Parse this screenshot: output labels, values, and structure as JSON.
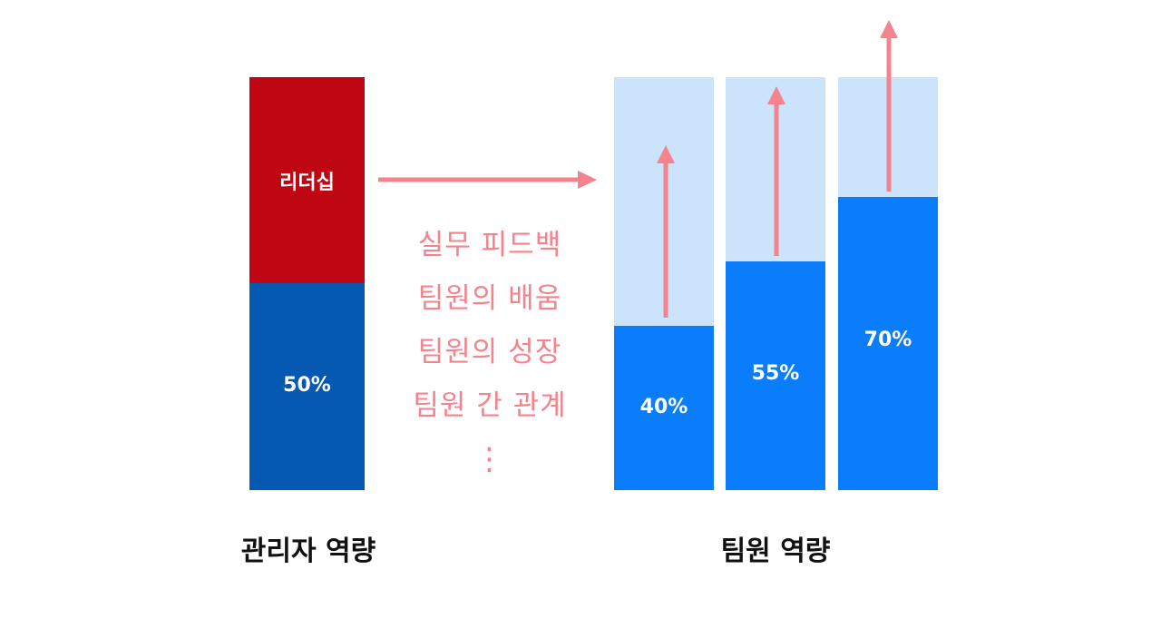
{
  "manager": {
    "caption": "관리자 역량",
    "top_label": "리더십",
    "bottom_label": "50%",
    "colors": {
      "top": "#bf0714",
      "bottom": "#0559b0"
    }
  },
  "middle": {
    "items": [
      "실무 피드백",
      "팀원의 배움",
      "팀원의 성장",
      "팀원 간 관계"
    ],
    "ellipsis": "⋮",
    "color": "#f4838d"
  },
  "team": {
    "caption": "팀원 역량",
    "bars": [
      {
        "label": "40%",
        "value": 0.4
      },
      {
        "label": "55%",
        "value": 0.55
      },
      {
        "label": "70%",
        "value": 0.7
      }
    ],
    "colors": {
      "fill": "#0a7dfa",
      "background": "#cbe3fb",
      "arrow": "#f4838d"
    }
  }
}
